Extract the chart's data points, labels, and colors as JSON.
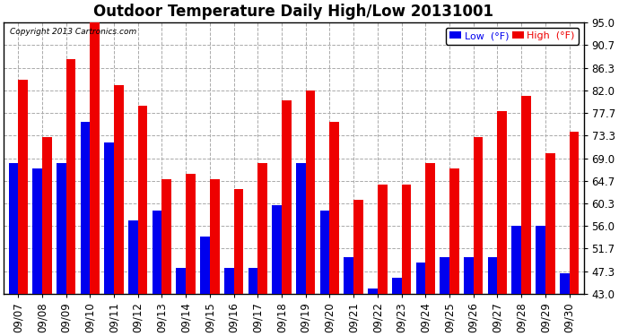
{
  "title": "Outdoor Temperature Daily High/Low 20131001",
  "copyright": "Copyright 2013 Cartronics.com",
  "legend_low": "Low  (°F)",
  "legend_high": "High  (°F)",
  "dates": [
    "09/07",
    "09/08",
    "09/09",
    "09/10",
    "09/11",
    "09/12",
    "09/13",
    "09/14",
    "09/15",
    "09/16",
    "09/17",
    "09/18",
    "09/19",
    "09/20",
    "09/21",
    "09/22",
    "09/23",
    "09/24",
    "09/25",
    "09/26",
    "09/27",
    "09/28",
    "09/29",
    "09/30"
  ],
  "highs": [
    84,
    73,
    88,
    95,
    83,
    79,
    65,
    66,
    65,
    63,
    68,
    80,
    82,
    76,
    61,
    64,
    64,
    68,
    67,
    73,
    78,
    81,
    70,
    74
  ],
  "lows": [
    68,
    67,
    68,
    76,
    72,
    57,
    59,
    48,
    54,
    48,
    48,
    60,
    68,
    59,
    50,
    44,
    46,
    49,
    50,
    50,
    50,
    56,
    56,
    47
  ],
  "ylim": [
    43.0,
    95.0
  ],
  "yticks": [
    43.0,
    47.3,
    51.7,
    56.0,
    60.3,
    64.7,
    69.0,
    73.3,
    77.7,
    82.0,
    86.3,
    90.7,
    95.0
  ],
  "low_color": "#0000ee",
  "high_color": "#ee0000",
  "bg_color": "#ffffff",
  "grid_color": "#aaaaaa",
  "title_fontsize": 12,
  "tick_fontsize": 8.5,
  "bar_width": 0.4
}
